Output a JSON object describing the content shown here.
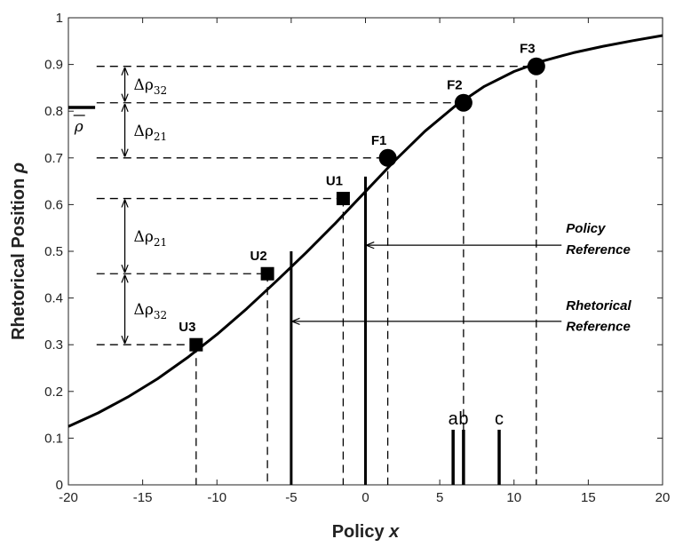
{
  "chart_data": {
    "type": "line",
    "xlabel_main": "Policy",
    "xlabel_var": "x",
    "ylabel_main": "Rhetorical Position",
    "ylabel_var": "ρ",
    "xlim": [
      -20,
      20
    ],
    "ylim": [
      0,
      1
    ],
    "x_ticks": [
      -20,
      -15,
      -10,
      -5,
      0,
      5,
      10,
      15,
      20
    ],
    "y_ticks": [
      0,
      0.1,
      0.2,
      0.3,
      0.4,
      0.5,
      0.6,
      0.7,
      0.8,
      0.9,
      1
    ],
    "curve": {
      "x": [
        -20,
        -18,
        -16,
        -14,
        -12,
        -10,
        -8,
        -6,
        -4,
        -2,
        0,
        2,
        4,
        6,
        8,
        10,
        12,
        14,
        16,
        18,
        20
      ],
      "y": [
        0.125,
        0.154,
        0.188,
        0.227,
        0.272,
        0.322,
        0.377,
        0.436,
        0.497,
        0.561,
        0.628,
        0.695,
        0.757,
        0.81,
        0.853,
        0.885,
        0.908,
        0.925,
        0.939,
        0.951,
        0.962
      ]
    },
    "points": [
      {
        "label": "U3",
        "x": -11.4,
        "y": 0.3,
        "marker": "square"
      },
      {
        "label": "U2",
        "x": -6.6,
        "y": 0.452,
        "marker": "square"
      },
      {
        "label": "U1",
        "x": -1.5,
        "y": 0.613,
        "marker": "square"
      },
      {
        "label": "F1",
        "x": 1.5,
        "y": 0.7,
        "marker": "circle"
      },
      {
        "label": "F2",
        "x": 6.6,
        "y": 0.818,
        "marker": "circle"
      },
      {
        "label": "F3",
        "x": 11.5,
        "y": 0.896,
        "marker": "circle"
      }
    ],
    "reference_lines": [
      {
        "x": 0,
        "y_top": 0.66
      },
      {
        "x": -5,
        "y_top": 0.5
      }
    ],
    "annotations": [
      {
        "line1": "Policy",
        "line2": "Reference",
        "text_x": 13.5,
        "text_y1": 0.54,
        "text_y2": 0.494,
        "arrow_from": 13.2,
        "arrow_to": 0.1,
        "arrow_y": 0.513
      },
      {
        "line1": "Rhetorical",
        "line2": "Reference",
        "text_x": 13.5,
        "text_y1": 0.375,
        "text_y2": 0.33,
        "arrow_from": 13.2,
        "arrow_to": -4.9,
        "arrow_y": 0.35
      }
    ],
    "delta_brackets": [
      {
        "y_top": 0.896,
        "y_bottom": 0.818,
        "sub": "32"
      },
      {
        "y_top": 0.818,
        "y_bottom": 0.7,
        "sub": "21"
      },
      {
        "y_top": 0.613,
        "y_bottom": 0.452,
        "sub": "21"
      },
      {
        "y_top": 0.452,
        "y_bottom": 0.3,
        "sub": "32"
      }
    ],
    "delta_symbol": "Δρ",
    "rho_bar": {
      "symbol": "ρ",
      "y": 0.808
    },
    "spikes": [
      {
        "label": "a",
        "x": 5.9,
        "height": 0.118
      },
      {
        "label": "b",
        "x": 6.6,
        "height": 0.118
      },
      {
        "label": "c",
        "x": 9.0,
        "height": 0.118
      }
    ]
  }
}
